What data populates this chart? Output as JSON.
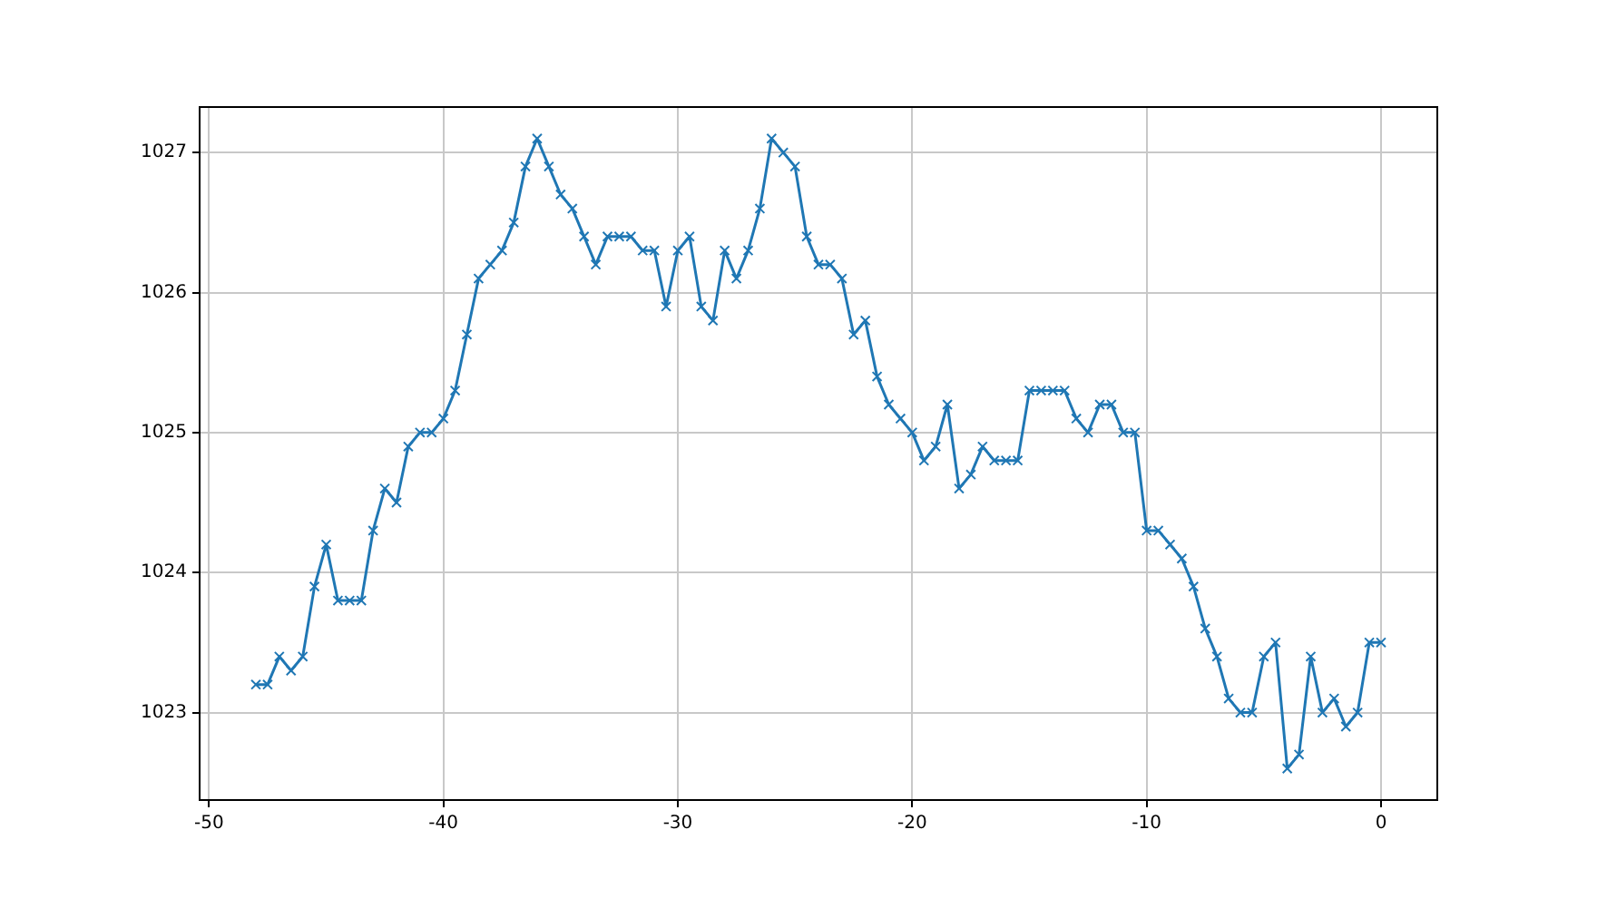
{
  "chart_data": {
    "type": "line",
    "x": [
      -48,
      -47.5,
      -47,
      -46.5,
      -46,
      -45.5,
      -45,
      -44.5,
      -44,
      -43.5,
      -43,
      -42.5,
      -42,
      -41.5,
      -41,
      -40.5,
      -40,
      -39.5,
      -39,
      -38.5,
      -38,
      -37.5,
      -37,
      -36.5,
      -36,
      -35.5,
      -35,
      -34.5,
      -34,
      -33.5,
      -33,
      -32.5,
      -32,
      -31.5,
      -31,
      -30.5,
      -30,
      -29.5,
      -29,
      -28.5,
      -28,
      -27.5,
      -27,
      -26.5,
      -26,
      -25.5,
      -25,
      -24.5,
      -24,
      -23.5,
      -23,
      -22.5,
      -22,
      -21.5,
      -21,
      -20.5,
      -20,
      -19.5,
      -19,
      -18.5,
      -18,
      -17.5,
      -17,
      -16.5,
      -16,
      -15.5,
      -15,
      -14.5,
      -14,
      -13.5,
      -13,
      -12.5,
      -12,
      -11.5,
      -11,
      -10.5,
      -10,
      -9.5,
      -9,
      -8.5,
      -8,
      -7.5,
      -7,
      -6.5,
      -6,
      -5.5,
      -5,
      -4.5,
      -4,
      -3.5,
      -3,
      -2.5,
      -2,
      -1.5,
      -1,
      -0.5,
      0
    ],
    "series": [
      {
        "color": "#1f77b4",
        "values": [
          1023.2,
          1023.2,
          1023.4,
          1023.3,
          1023.4,
          1023.9,
          1024.2,
          1023.8,
          1023.8,
          1023.8,
          1024.3,
          1024.6,
          1024.5,
          1024.9,
          1025.0,
          1025.0,
          1025.1,
          1025.3,
          1025.7,
          1026.1,
          1026.2,
          1026.3,
          1026.5,
          1026.9,
          1027.1,
          1026.9,
          1026.7,
          1026.6,
          1026.4,
          1026.2,
          1026.4,
          1026.4,
          1026.4,
          1026.3,
          1026.3,
          1025.9,
          1026.3,
          1026.4,
          1025.9,
          1025.8,
          1026.3,
          1026.1,
          1026.3,
          1026.6,
          1027.1,
          1027.0,
          1026.9,
          1026.4,
          1026.2,
          1026.2,
          1026.1,
          1025.7,
          1025.8,
          1025.4,
          1025.2,
          1025.1,
          1025.0,
          1024.8,
          1024.9,
          1025.2,
          1024.6,
          1024.7,
          1024.9,
          1024.8,
          1024.8,
          1024.8,
          1025.3,
          1025.3,
          1025.3,
          1025.3,
          1025.1,
          1025.0,
          1025.2,
          1025.2,
          1025.0,
          1025.0,
          1024.3,
          1024.3,
          1024.2,
          1024.1,
          1023.9,
          1023.6,
          1023.4,
          1023.1,
          1023.0,
          1023.0,
          1023.4,
          1023.5,
          1022.6,
          1022.7,
          1023.4,
          1023.0,
          1023.1,
          1022.9,
          1023.0,
          1023.5,
          1023.5
        ]
      }
    ],
    "xlim": [
      -50.4,
      2.4
    ],
    "xticks": [
      -50,
      -40,
      -30,
      -20,
      -10,
      0
    ],
    "ylim": [
      1022.375,
      1027.325
    ],
    "yticks": [
      1023,
      1024,
      1025,
      1026,
      1027
    ],
    "grid": true,
    "marker": "cross",
    "line_style": "solid",
    "legend": false
  }
}
